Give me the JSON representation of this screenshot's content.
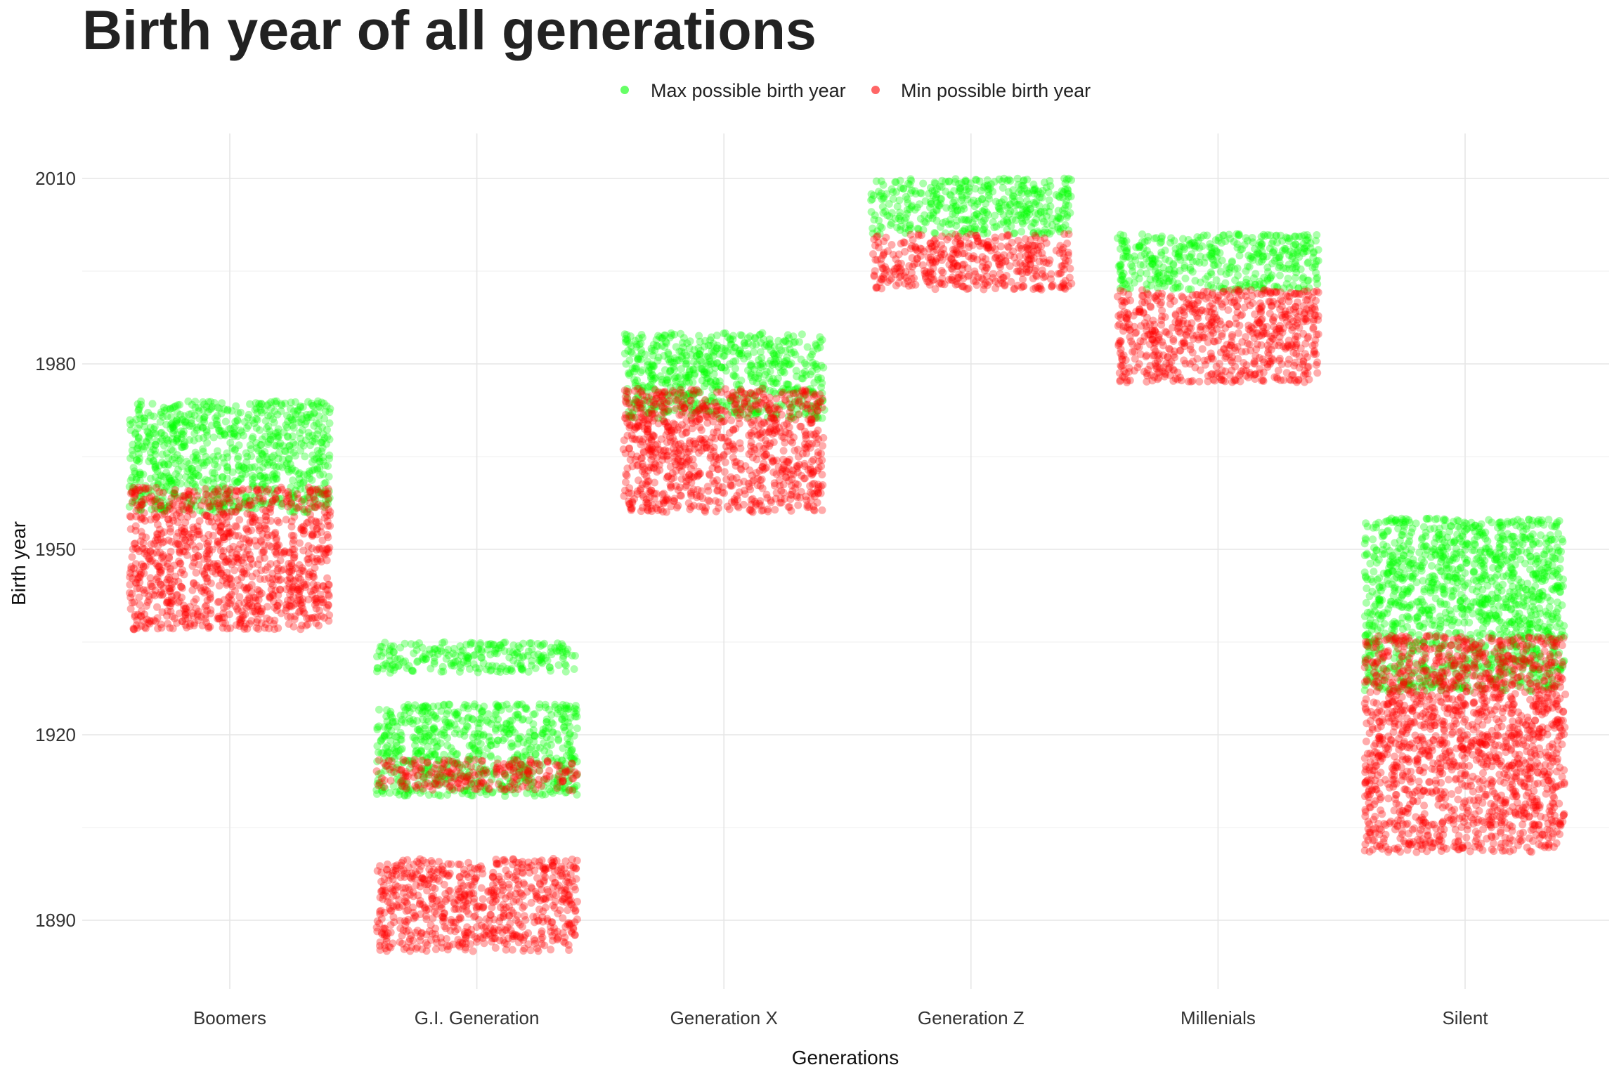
{
  "chart_data": {
    "type": "scatter",
    "title": "Birth year of all generations",
    "xlabel": "Generations",
    "ylabel": "Birth year",
    "categories": [
      "Boomers",
      "G.I. Generation",
      "Generation X",
      "Generation Z",
      "Millenials",
      "Silent"
    ],
    "yticks": [
      1890,
      1920,
      1950,
      1980,
      2010
    ],
    "ylim": [
      1879,
      2016
    ],
    "grid": true,
    "jittered": true,
    "legend_position": "top",
    "series": [
      {
        "name": "Max possible birth year",
        "color": "#00ff00",
        "ranges": [
          {
            "category": "Boomers",
            "bands": [
              [
                1956,
                1974
              ]
            ]
          },
          {
            "category": "G.I. Generation",
            "bands": [
              [
                1930,
                1935
              ],
              [
                1910,
                1925
              ]
            ]
          },
          {
            "category": "Generation X",
            "bands": [
              [
                1971,
                1985
              ]
            ]
          },
          {
            "category": "Generation Z",
            "bands": [
              [
                2001,
                2010
              ]
            ]
          },
          {
            "category": "Millenials",
            "bands": [
              [
                1992,
                2001
              ]
            ]
          },
          {
            "category": "Silent",
            "bands": [
              [
                1927,
                1955
              ]
            ]
          }
        ]
      },
      {
        "name": "Min possible birth year",
        "color": "#ff0000",
        "ranges": [
          {
            "category": "Boomers",
            "bands": [
              [
                1937,
                1960
              ]
            ]
          },
          {
            "category": "G.I. Generation",
            "bands": [
              [
                1885,
                1900
              ],
              [
                1911,
                1916
              ]
            ]
          },
          {
            "category": "Generation X",
            "bands": [
              [
                1956,
                1976
              ]
            ]
          },
          {
            "category": "Generation Z",
            "bands": [
              [
                1992,
                2001
              ]
            ]
          },
          {
            "category": "Millenials",
            "bands": [
              [
                1977,
                1992
              ]
            ]
          },
          {
            "category": "Silent",
            "bands": [
              [
                1901,
                1936
              ]
            ]
          }
        ]
      }
    ]
  }
}
